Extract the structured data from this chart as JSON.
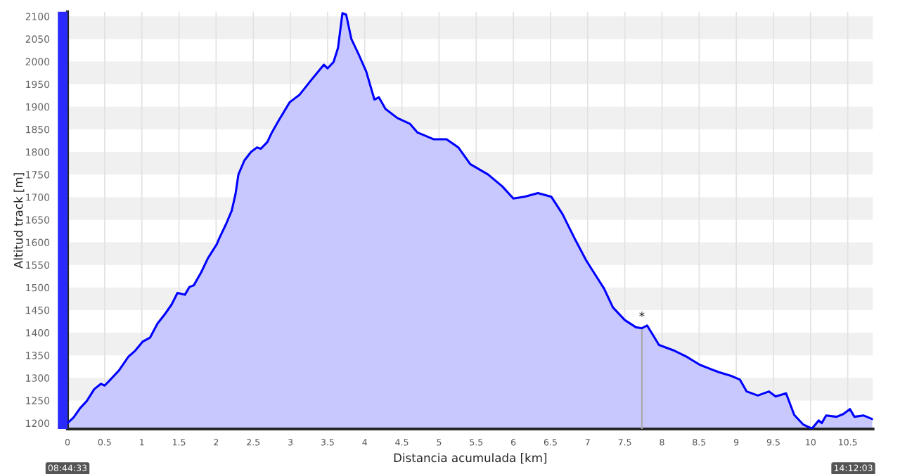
{
  "chart_data": {
    "type": "area",
    "xlabel": "Distancia acumulada [km]",
    "ylabel": "Altitud track [m]",
    "x": [
      0,
      0.08,
      0.17,
      0.26,
      0.36,
      0.45,
      0.5,
      0.57,
      0.69,
      0.82,
      0.91,
      1.01,
      1.11,
      1.21,
      1.31,
      1.4,
      1.48,
      1.58,
      1.64,
      1.7,
      1.8,
      1.89,
      2.01,
      2.04,
      2.13,
      2.21,
      2.26,
      2.3,
      2.38,
      2.47,
      2.55,
      2.6,
      2.69,
      2.75,
      2.84,
      2.99,
      3.12,
      3.27,
      3.45,
      3.5,
      3.58,
      3.64,
      3.7,
      3.75,
      3.82,
      3.91,
      4.02,
      4.13,
      4.19,
      4.28,
      4.44,
      4.61,
      4.71,
      4.93,
      5.1,
      5.26,
      5.42,
      5.66,
      5.85,
      6.0,
      6.15,
      6.33,
      6.51,
      6.66,
      6.83,
      6.98,
      7.1,
      7.22,
      7.34,
      7.5,
      7.65,
      7.73,
      7.8,
      7.96,
      8.17,
      8.33,
      8.51,
      8.76,
      8.94,
      9.05,
      9.14,
      9.29,
      9.44,
      9.53,
      9.67,
      9.78,
      9.9,
      10.02,
      10.11,
      10.15,
      10.21,
      10.35,
      10.44,
      10.53,
      10.59,
      10.71,
      10.83
    ],
    "series": [
      {
        "color": "#0000ff",
        "values": [
          1200,
          1212,
          1233,
          1249,
          1275,
          1287,
          1283,
          1295,
          1316,
          1347,
          1360,
          1380,
          1389,
          1420,
          1441,
          1462,
          1488,
          1484,
          1501,
          1505,
          1534,
          1565,
          1596,
          1608,
          1639,
          1670,
          1706,
          1750,
          1781,
          1800,
          1810,
          1807,
          1822,
          1843,
          1869,
          1910,
          1926,
          1957,
          1993,
          1985,
          1999,
          2030,
          2107,
          2104,
          2050,
          2019,
          1978,
          1916,
          1921,
          1895,
          1875,
          1862,
          1843,
          1828,
          1828,
          1810,
          1773,
          1750,
          1724,
          1697,
          1701,
          1709,
          1701,
          1663,
          1607,
          1560,
          1529,
          1498,
          1456,
          1428,
          1412,
          1410,
          1416,
          1373,
          1360,
          1347,
          1329,
          1313,
          1304,
          1296,
          1270,
          1261,
          1270,
          1259,
          1266,
          1218,
          1197,
          1188,
          1206,
          1200,
          1217,
          1214,
          1220,
          1231,
          1214,
          1217,
          1209
        ]
      }
    ],
    "xlim": [
      0,
      10.84
    ],
    "ylim": [
      1187,
      2110
    ],
    "xticks": [
      0,
      0.5,
      1,
      1.5,
      2,
      2.5,
      3,
      3.5,
      4,
      4.5,
      5,
      5.5,
      6,
      6.5,
      7,
      7.5,
      8,
      8.5,
      9,
      9.5,
      10,
      10.5
    ],
    "yticks": [
      1200,
      1250,
      1300,
      1350,
      1400,
      1450,
      1500,
      1550,
      1600,
      1650,
      1700,
      1750,
      1800,
      1850,
      1900,
      1950,
      2000,
      2050,
      2100
    ],
    "grid": true,
    "ref_lines": [
      {
        "axis": "x",
        "value": 7.73,
        "label": "*",
        "color": "#aaaaaa"
      }
    ],
    "annotations": [
      "08:44:33",
      "14:12:03"
    ]
  }
}
